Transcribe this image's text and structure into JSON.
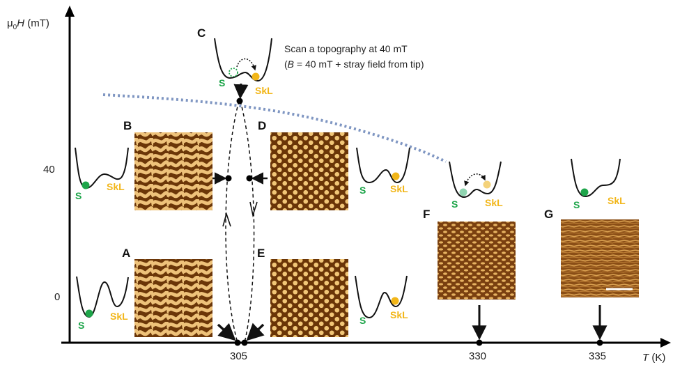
{
  "axes": {
    "y_label_prefix": "μ",
    "y_label_sub": "0",
    "y_label_var": "H",
    "y_label_unit": " (mT)",
    "x_label_var": "T",
    "x_label_unit": " (K)",
    "y_ticks": [
      "40",
      "0"
    ],
    "x_ticks": [
      "305",
      "330",
      "335"
    ]
  },
  "annotation": {
    "line1": "Scan a topography at 40 mT",
    "line2_open": "(",
    "line2_var": "B",
    "line2_rest": " = 40 mT + stray field from tip)"
  },
  "panels": [
    "A",
    "B",
    "C",
    "D",
    "E",
    "F",
    "G"
  ],
  "states": {
    "s": "S",
    "skl": "SkL"
  },
  "colors": {
    "s_state": "#1ea54a",
    "skl_state": "#f2b619",
    "boundary": "#7f96c2",
    "image_dark": "#5a2d06",
    "image_light": "#f0c070"
  }
}
